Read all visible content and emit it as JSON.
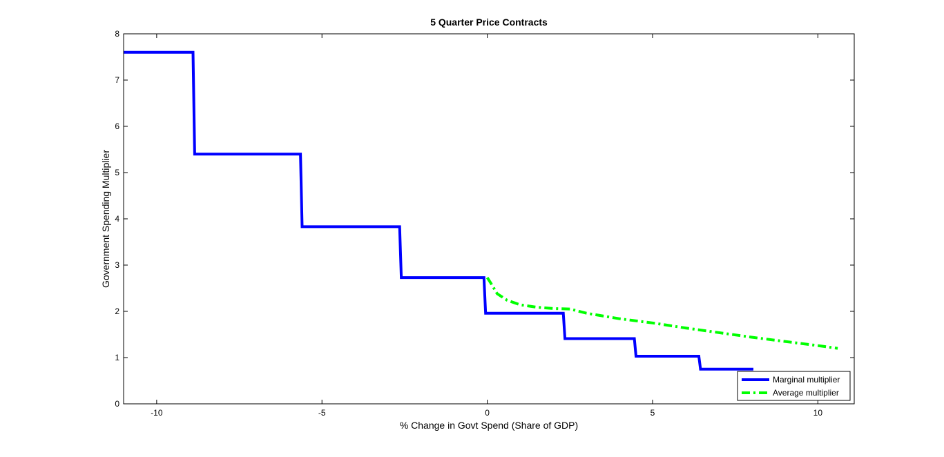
{
  "chart_data": {
    "type": "line",
    "title": "5 Quarter Price Contracts",
    "xlabel": "% Change in Govt Spend (Share of GDP)",
    "ylabel": "Government Spending Multiplier",
    "xlim": [
      -11,
      11.1
    ],
    "ylim": [
      0,
      8
    ],
    "xticks": [
      -10,
      -5,
      0,
      5,
      10
    ],
    "yticks": [
      0,
      1,
      2,
      3,
      4,
      5,
      6,
      7,
      8
    ],
    "grid": false,
    "legend_position": "bottom-right",
    "series": [
      {
        "name": "Marginal multiplier",
        "color": "#0000ff",
        "style": "solid",
        "x": [
          -11,
          -8.9,
          -8.85,
          -5.65,
          -5.6,
          -2.65,
          -2.6,
          -0.1,
          -0.05,
          2.3,
          2.35,
          4.45,
          4.5,
          6.4,
          6.45,
          8.05
        ],
        "y": [
          7.6,
          7.6,
          5.4,
          5.4,
          3.83,
          3.83,
          2.73,
          2.73,
          1.96,
          1.96,
          1.41,
          1.41,
          1.03,
          1.03,
          0.75,
          0.75
        ]
      },
      {
        "name": "Average multiplier",
        "color": "#00ff00",
        "style": "dash-dot",
        "x": [
          0,
          0.1,
          0.3,
          0.6,
          1.0,
          1.5,
          2.0,
          2.5,
          3.0,
          4.0,
          5.0,
          6.0,
          7.0,
          8.0,
          9.0,
          10.0,
          10.6
        ],
        "y": [
          2.73,
          2.62,
          2.38,
          2.24,
          2.14,
          2.09,
          2.06,
          2.05,
          1.96,
          1.84,
          1.75,
          1.64,
          1.54,
          1.44,
          1.35,
          1.26,
          1.2
        ]
      }
    ]
  }
}
